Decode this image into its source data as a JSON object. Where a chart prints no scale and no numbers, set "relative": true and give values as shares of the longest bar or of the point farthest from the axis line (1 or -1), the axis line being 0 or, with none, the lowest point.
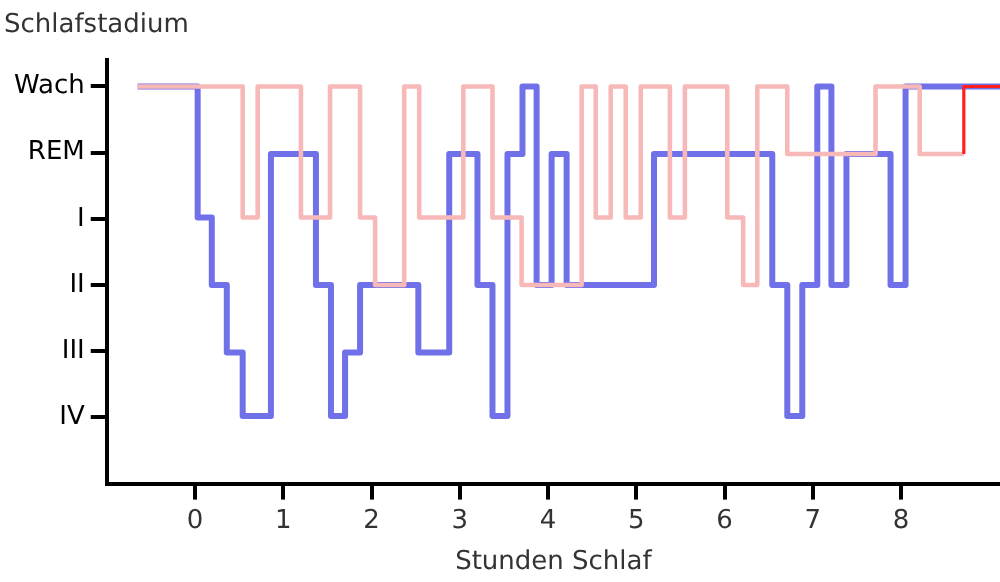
{
  "chart_data": {
    "type": "step",
    "xlabel": "Stunden Schlaf",
    "ylabel": "Schlafstadium",
    "xlim": [
      -1,
      9.12
    ],
    "xticks": [
      0,
      1,
      2,
      3,
      4,
      5,
      6,
      7,
      8
    ],
    "y_categories": [
      "Wach",
      "REM",
      "I",
      "II",
      "III",
      "IV"
    ],
    "relative": true,
    "grid": false,
    "legend": false,
    "marker": "none",
    "line_style": "solid",
    "series": [
      {
        "color": "#7070e8",
        "x": [
          -0.65,
          0.03,
          0.19,
          0.36,
          0.54,
          0.86,
          1.37,
          1.54,
          1.7,
          1.87,
          2.53,
          2.88,
          3.2,
          3.37,
          3.54,
          3.71,
          3.87,
          4.04,
          4.21,
          5.2,
          6.54,
          6.71,
          6.88,
          7.05,
          7.21,
          7.38,
          7.88,
          8.05,
          9.12
        ],
        "values": [
          1,
          0.67,
          0.5,
          0.33,
          0.17,
          0.83,
          0.5,
          0.17,
          0.33,
          0.5,
          0.33,
          0.83,
          0.5,
          0.17,
          0.83,
          1,
          0.5,
          0.83,
          0.5,
          0.83,
          0.5,
          0.17,
          0.5,
          1,
          0.5,
          0.83,
          0.5,
          1,
          1
        ]
      },
      {
        "color": "#f7b8b8",
        "x": [
          -0.65,
          0.54,
          0.71,
          1.2,
          1.53,
          1.87,
          2.04,
          2.37,
          2.54,
          3.04,
          3.37,
          3.7,
          4.38,
          4.54,
          4.71,
          4.88,
          5.05,
          5.38,
          5.55,
          6.03,
          6.21,
          6.37,
          6.71,
          7.71,
          8.21,
          8.71
        ],
        "values": [
          1,
          0.67,
          1,
          0.67,
          1,
          0.67,
          0.5,
          1,
          0.67,
          1,
          0.67,
          0.5,
          1,
          0.67,
          1,
          0.67,
          1,
          0.67,
          1,
          0.67,
          0.5,
          1,
          0.83,
          1,
          0.83,
          0.83
        ]
      },
      {
        "color": "#ff2020",
        "x": [
          8.71,
          8.71,
          9.12
        ],
        "values": [
          0.83,
          1,
          1
        ]
      }
    ]
  }
}
